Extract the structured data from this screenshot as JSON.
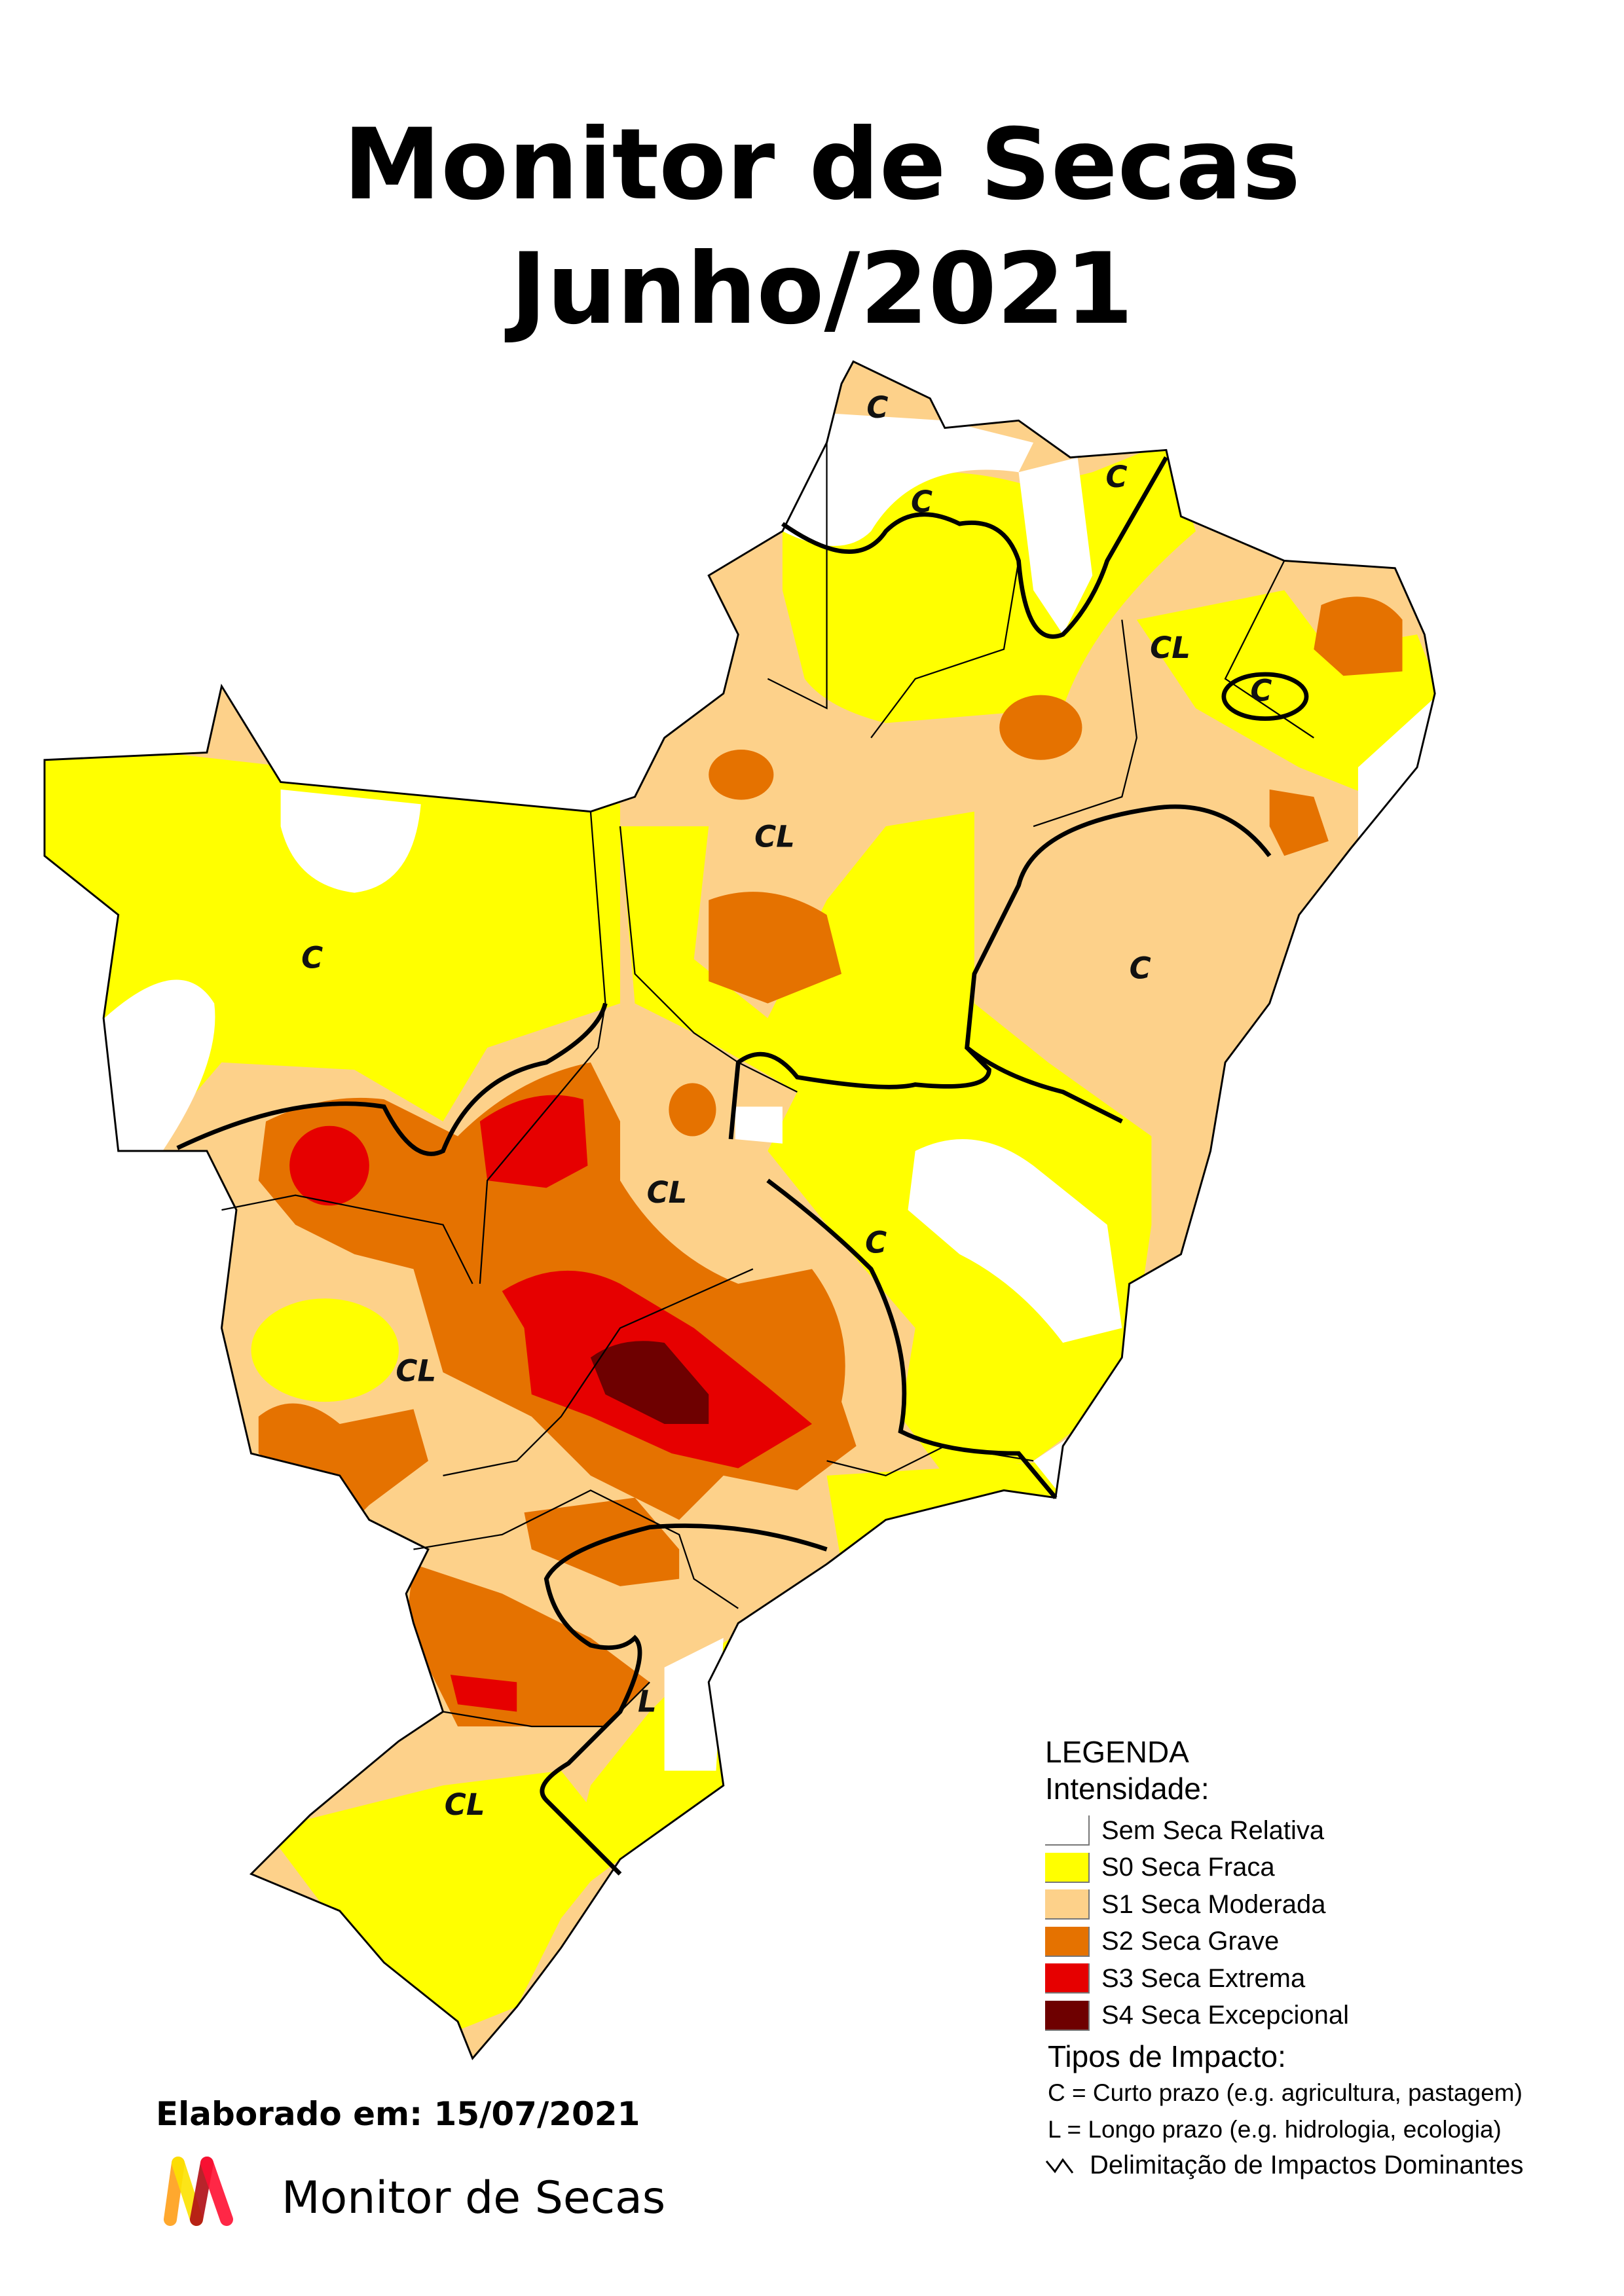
{
  "title": {
    "line1": "Monitor de Secas",
    "line2": "Junho/2021"
  },
  "colors": {
    "sem_seca": "#ffffff",
    "s0": "#ffff00",
    "s1": "#fdd18a",
    "s2": "#e57200",
    "s3": "#e60000",
    "s4": "#6e0000",
    "boundary": "#000000"
  },
  "map_labels": [
    "C",
    "C",
    "C",
    "CL",
    "C",
    "CL",
    "C",
    "C",
    "CL",
    "C",
    "CL",
    "L",
    "CL"
  ],
  "legend": {
    "heading": "LEGENDA",
    "intensity_heading": "Intensidade:",
    "items": [
      {
        "label": "Sem Seca Relativa",
        "color": "#ffffff"
      },
      {
        "label": "S0 Seca Fraca",
        "color": "#ffff00"
      },
      {
        "label": "S1 Seca Moderada",
        "color": "#fdd18a"
      },
      {
        "label": "S2 Seca Grave",
        "color": "#e57200"
      },
      {
        "label": "S3 Seca Extrema",
        "color": "#e60000"
      },
      {
        "label": "S4 Seca Excepcional",
        "color": "#6e0000"
      }
    ],
    "impact_heading": "Tipos de Impacto:",
    "impact_c": "C = Curto prazo (e.g. agricultura, pastagem)",
    "impact_l": "L = Longo prazo (e.g. hidrologia, ecologia)",
    "delimitation": "Delimitação de Impactos Dominantes"
  },
  "footer": {
    "elaborado": "Elaborado em: 15/07/2021",
    "logo_text": "Monitor de Secas"
  }
}
